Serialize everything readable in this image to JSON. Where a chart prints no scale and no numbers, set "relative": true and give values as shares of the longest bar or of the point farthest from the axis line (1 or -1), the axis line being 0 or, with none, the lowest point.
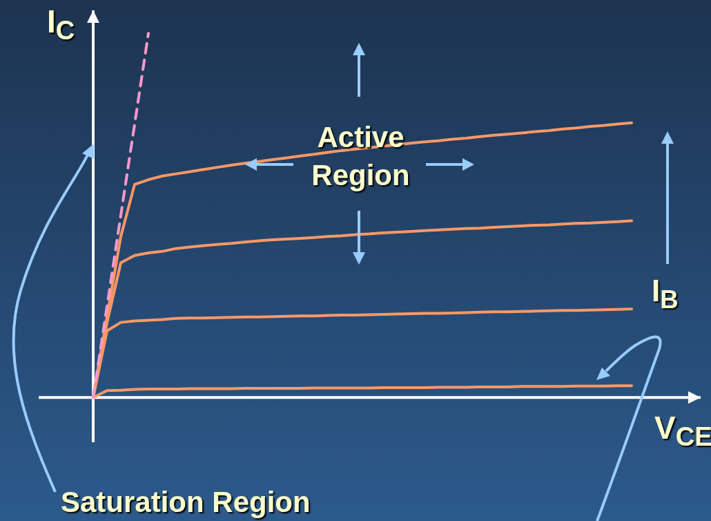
{
  "chart_data": {
    "type": "line",
    "relative": true,
    "xlabel": "V$_{CE}$",
    "ylabel": "I$_{C}$",
    "annotations": [
      "Active Region",
      "I$_{B}$",
      "Saturation Region"
    ],
    "legend": false,
    "grid": false,
    "marker": "none",
    "categories": [
      null,
      null,
      null,
      null,
      null,
      null,
      null,
      null,
      null,
      null,
      null,
      null,
      null,
      null,
      null,
      null,
      null,
      null,
      null,
      null,
      null,
      null,
      null,
      null,
      null,
      null,
      null,
      null,
      null,
      null,
      null,
      null,
      null,
      null,
      null,
      null,
      null,
      null,
      null,
      null
    ],
    "series": [
      {
        "color": "#ff9966",
        "values": [
          0,
          0.221,
          0.442,
          0.585,
          0.598,
          0.608,
          0.614,
          0.62,
          0.626,
          0.632,
          0.638,
          0.643,
          0.648,
          0.653,
          0.658,
          0.663,
          0.668,
          0.673,
          0.678,
          0.682,
          0.686,
          0.69,
          0.694,
          0.698,
          0.702,
          0.705,
          0.709,
          0.712,
          0.716,
          0.72,
          0.723,
          0.726,
          0.73,
          0.733,
          0.737,
          0.74,
          0.744,
          0.747,
          0.751,
          0.754
        ]
      },
      {
        "color": "#ff9966",
        "values": [
          0,
          0.205,
          0.37,
          0.39,
          0.397,
          0.401,
          0.409,
          0.413,
          0.417,
          0.42,
          0.423,
          0.427,
          0.43,
          0.433,
          0.435,
          0.437,
          0.439,
          0.442,
          0.444,
          0.447,
          0.449,
          0.452,
          0.454,
          0.456,
          0.458,
          0.46,
          0.462,
          0.464,
          0.465,
          0.467,
          0.469,
          0.471,
          0.473,
          0.474,
          0.476,
          0.478,
          0.479,
          0.481,
          0.483,
          0.485
        ]
      },
      {
        "color": "#ff9966",
        "values": [
          0,
          0.183,
          0.206,
          0.21,
          0.212,
          0.214,
          0.217,
          0.218,
          0.218,
          0.219,
          0.22,
          0.221,
          0.221,
          0.222,
          0.223,
          0.224,
          0.224,
          0.225,
          0.226,
          0.226,
          0.227,
          0.228,
          0.229,
          0.23,
          0.231,
          0.231,
          0.232,
          0.233,
          0.234,
          0.235,
          0.235,
          0.236,
          0.237,
          0.238,
          0.239,
          0.239,
          0.24,
          0.241,
          0.242,
          0.243
        ]
      },
      {
        "color": "#ff9966",
        "values": [
          0,
          0.019,
          0.02,
          0.022,
          0.023,
          0.023,
          0.023,
          0.024,
          0.024,
          0.024,
          0.024,
          0.025,
          0.025,
          0.025,
          0.025,
          0.025,
          0.026,
          0.026,
          0.026,
          0.026,
          0.026,
          0.027,
          0.027,
          0.027,
          0.027,
          0.028,
          0.028,
          0.028,
          0.029,
          0.029,
          0.029,
          0.03,
          0.03,
          0.03,
          0.03,
          0.031,
          0.031,
          0.031,
          0.032,
          0.032
        ]
      },
      {
        "color": "#ff99cc",
        "line_style": "dashed",
        "values": [
          0,
          0.25,
          0.5,
          0.75,
          1,
          null,
          null,
          null,
          null,
          null,
          null,
          null,
          null,
          null,
          null,
          null,
          null,
          null,
          null,
          null,
          null,
          null,
          null,
          null,
          null,
          null,
          null,
          null,
          null,
          null,
          null,
          null,
          null,
          null,
          null,
          null,
          null,
          null,
          null,
          null
        ]
      }
    ]
  }
}
